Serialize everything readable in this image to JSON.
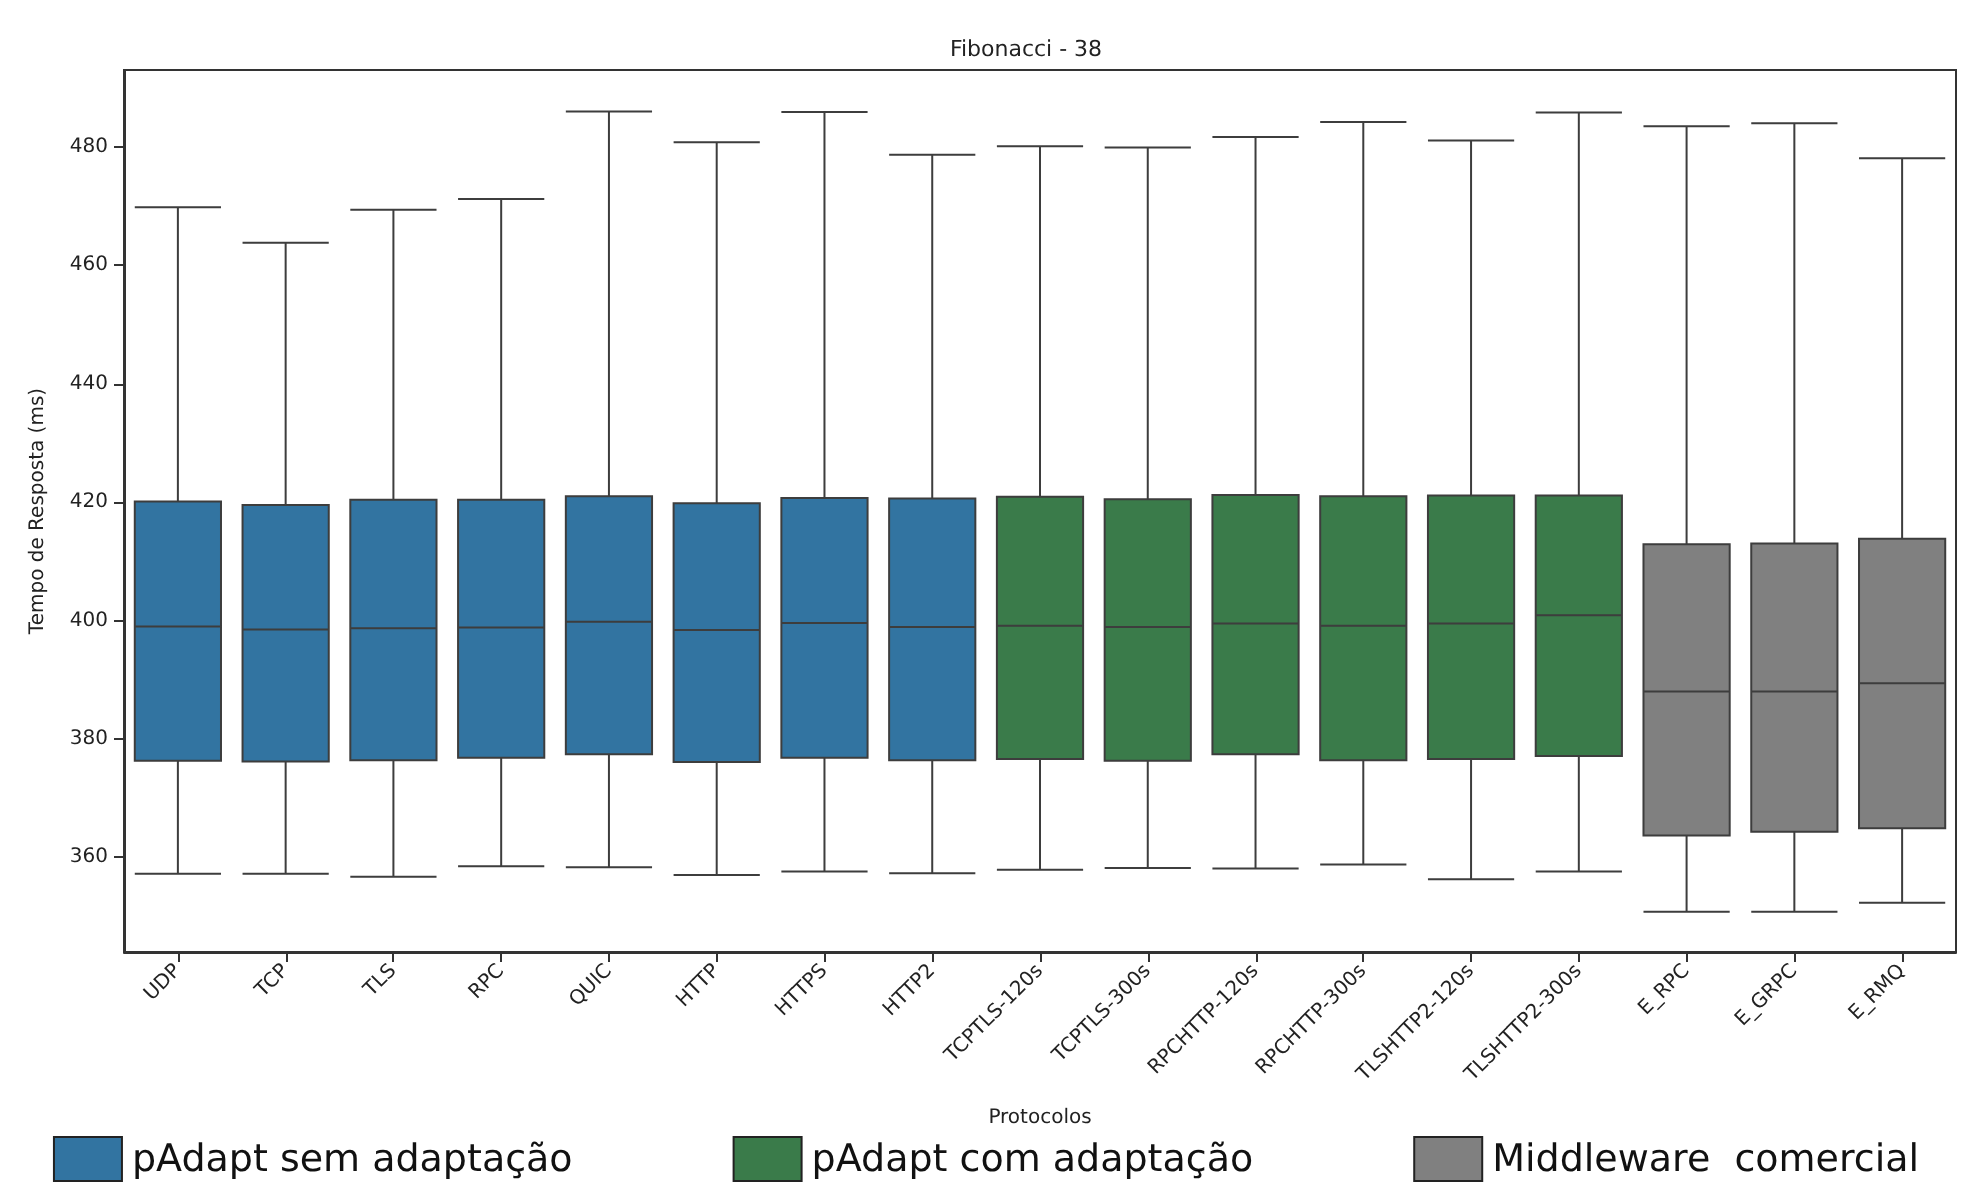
{
  "chart_data": {
    "type": "box",
    "title": "Fibonacci - 38",
    "xlabel": "Protocolos",
    "ylabel": "Tempo de Resposta (ms)",
    "categories": [
      "UDP",
      "TCP",
      "TLS",
      "RPC",
      "QUIC",
      "HTTP",
      "HTTPS",
      "HTTP2",
      "TCPTLS-120s",
      "TCPTLS-300s",
      "RPCHTTP-120s",
      "RPCHTTP-300s",
      "TLSHTTP2-120s",
      "TLSHTTP2-300s",
      "E_RPC",
      "E_GRPC",
      "E_RMQ"
    ],
    "ylim": [
      344,
      493
    ],
    "yticks": [
      360,
      380,
      400,
      420,
      440,
      460,
      480
    ],
    "grid": false,
    "legend": "bottom",
    "series": [
      {
        "name": "pAdapt sem adaptação",
        "color": "#3274a1",
        "boxes": [
          {
            "low": 357.2,
            "q1": 376.3,
            "median": 399.0,
            "q3": 420.1,
            "high": 469.8
          },
          {
            "low": 357.2,
            "q1": 376.2,
            "median": 398.5,
            "q3": 419.5,
            "high": 463.8
          },
          {
            "low": 356.7,
            "q1": 376.4,
            "median": 398.7,
            "q3": 420.4,
            "high": 469.4
          },
          {
            "low": 358.5,
            "q1": 376.8,
            "median": 398.8,
            "q3": 420.4,
            "high": 471.2
          },
          {
            "low": 358.3,
            "q1": 377.4,
            "median": 399.8,
            "q3": 421.0,
            "high": 486.0
          },
          {
            "low": 357.0,
            "q1": 376.1,
            "median": 398.4,
            "q3": 419.8,
            "high": 480.8
          },
          {
            "low": 357.6,
            "q1": 376.8,
            "median": 399.6,
            "q3": 420.7,
            "high": 485.9
          },
          {
            "low": 357.3,
            "q1": 376.4,
            "median": 398.9,
            "q3": 420.6,
            "high": 478.7
          },
          null,
          null,
          null,
          null,
          null,
          null,
          null,
          null,
          null
        ]
      },
      {
        "name": "pAdapt com adaptação",
        "color": "#3a7b4a",
        "boxes": [
          null,
          null,
          null,
          null,
          null,
          null,
          null,
          null,
          {
            "low": 357.9,
            "q1": 376.6,
            "median": 399.1,
            "q3": 420.9,
            "high": 480.1
          },
          {
            "low": 358.2,
            "q1": 376.3,
            "median": 398.9,
            "q3": 420.5,
            "high": 479.9
          },
          {
            "low": 358.1,
            "q1": 377.4,
            "median": 399.5,
            "q3": 421.2,
            "high": 481.7
          },
          {
            "low": 358.8,
            "q1": 376.4,
            "median": 399.1,
            "q3": 421.0,
            "high": 484.2
          },
          {
            "low": 356.3,
            "q1": 376.6,
            "median": 399.5,
            "q3": 421.1,
            "high": 481.1
          },
          {
            "low": 357.6,
            "q1": 377.1,
            "median": 400.9,
            "q3": 421.1,
            "high": 485.8
          },
          null,
          null,
          null
        ]
      },
      {
        "name": "Middleware  comercial",
        "color": "#808080",
        "boxes": [
          null,
          null,
          null,
          null,
          null,
          null,
          null,
          null,
          null,
          null,
          null,
          null,
          null,
          null,
          {
            "low": 350.8,
            "q1": 363.7,
            "median": 388.0,
            "q3": 412.9,
            "high": 483.5
          },
          {
            "low": 350.8,
            "q1": 364.3,
            "median": 388.0,
            "q3": 413.0,
            "high": 484.0
          },
          {
            "low": 352.3,
            "q1": 364.9,
            "median": 389.4,
            "q3": 413.8,
            "high": 478.1
          }
        ]
      }
    ]
  }
}
